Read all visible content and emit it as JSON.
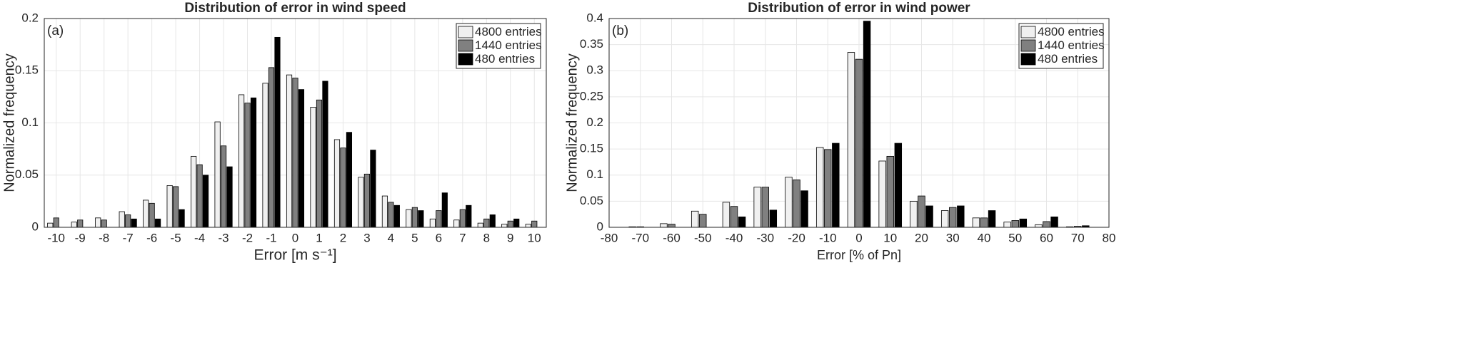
{
  "chart_data": [
    {
      "type": "bar",
      "title": "Distribution of error in wind speed",
      "annotation": "(a)",
      "xlabel": "Error [m s⁻¹]",
      "ylabel": "Normalized frequency",
      "x": [
        -10,
        -9,
        -8,
        -7,
        -6,
        -5,
        -4,
        -3,
        -2,
        -1,
        0,
        1,
        2,
        3,
        4,
        5,
        6,
        7,
        8,
        9,
        10
      ],
      "series": [
        {
          "name": "4800 entries",
          "color": "#f0f0f0",
          "values": [
            0.004,
            0.005,
            0.009,
            0.015,
            0.026,
            0.04,
            0.068,
            0.101,
            0.127,
            0.138,
            0.146,
            0.115,
            0.084,
            0.048,
            0.03,
            0.017,
            0.008,
            0.007,
            0.004,
            0.003,
            0.003
          ]
        },
        {
          "name": "1440 entries",
          "color": "#808080",
          "values": [
            0.009,
            0.007,
            0.007,
            0.012,
            0.023,
            0.039,
            0.06,
            0.078,
            0.119,
            0.153,
            0.143,
            0.122,
            0.076,
            0.051,
            0.024,
            0.019,
            0.016,
            0.017,
            0.008,
            0.006,
            0.006
          ]
        },
        {
          "name": "480 entries",
          "color": "#000000",
          "values": [
            0,
            0,
            0,
            0.008,
            0.008,
            0.017,
            0.05,
            0.058,
            0.124,
            0.182,
            0.132,
            0.14,
            0.091,
            0.074,
            0.021,
            0.016,
            0.033,
            0.021,
            0.012,
            0.008,
            0
          ]
        }
      ],
      "xlim": [
        -10.5,
        10.5
      ],
      "xticks": [
        -10,
        -9,
        -8,
        -7,
        -6,
        -5,
        -4,
        -3,
        -2,
        -1,
        0,
        1,
        2,
        3,
        4,
        5,
        6,
        7,
        8,
        9,
        10
      ],
      "ylim": [
        0,
        0.2
      ],
      "yticks": [
        0,
        0.05,
        0.1,
        0.15,
        0.2
      ],
      "grid": true,
      "legend": "upper right"
    },
    {
      "type": "bar",
      "title": "Distribution of error in wind power",
      "annotation": "(b)",
      "xlabel": "Error [% of Pn]",
      "ylabel": "Normalized frequency",
      "x": [
        -70,
        -60,
        -50,
        -40,
        -30,
        -20,
        -10,
        0,
        10,
        20,
        30,
        40,
        50,
        60,
        70
      ],
      "series": [
        {
          "name": "4800 entries",
          "color": "#f0f0f0",
          "values": [
            0.001,
            0.007,
            0.031,
            0.048,
            0.077,
            0.096,
            0.153,
            0.335,
            0.127,
            0.05,
            0.032,
            0.018,
            0.01,
            0.005,
            0.001
          ]
        },
        {
          "name": "1440 entries",
          "color": "#808080",
          "values": [
            0.001,
            0.006,
            0.025,
            0.04,
            0.077,
            0.091,
            0.149,
            0.322,
            0.136,
            0.06,
            0.038,
            0.018,
            0.013,
            0.011,
            0.002
          ]
        },
        {
          "name": "480 entries",
          "color": "#000000",
          "values": [
            0,
            0,
            0,
            0.02,
            0.033,
            0.07,
            0.161,
            0.395,
            0.161,
            0.041,
            0.041,
            0.032,
            0.016,
            0.02,
            0.003
          ]
        }
      ],
      "xlim": [
        -80,
        80
      ],
      "xticks": [
        -80,
        -70,
        -60,
        -50,
        -40,
        -30,
        -20,
        -10,
        0,
        10,
        20,
        30,
        40,
        50,
        60,
        70,
        80
      ],
      "ylim": [
        0,
        0.4
      ],
      "yticks": [
        0,
        0.05,
        0.1,
        0.15,
        0.2,
        0.25,
        0.3,
        0.35,
        0.4
      ],
      "grid": true,
      "legend": "upper right"
    }
  ]
}
